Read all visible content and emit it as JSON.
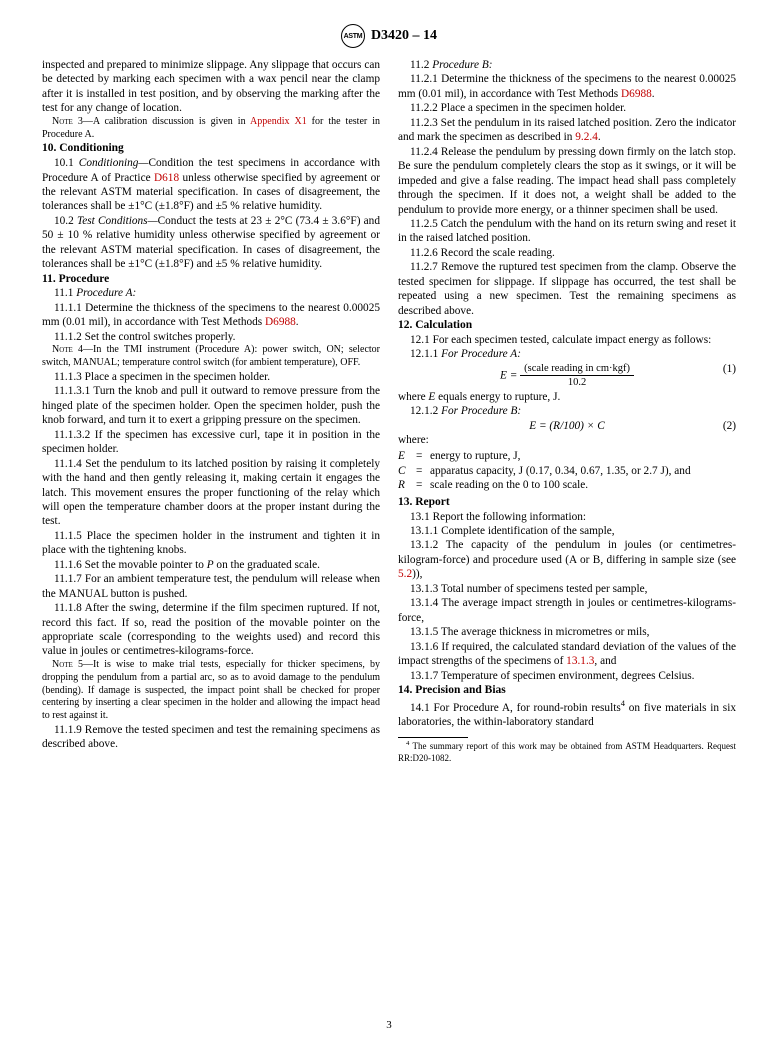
{
  "header": {
    "logo_text": "ASTM",
    "designation": "D3420 – 14"
  },
  "page_number": "3",
  "colors": {
    "ref_link": "#c00000",
    "text": "#000000",
    "background": "#ffffff"
  },
  "typography": {
    "body_font": "Times New Roman",
    "body_size_pt": 9,
    "note_size_pt": 8,
    "heading_weight": "bold"
  },
  "left_col": {
    "intro": "inspected and prepared to minimize slippage. Any slippage that occurs can be detected by marking each specimen with a wax pencil near the clamp after it is installed in test position, and by observing the marking after the test for any change of location.",
    "note3_label": "Note 3—",
    "note3": "A calibration discussion is given in ",
    "note3_ref": "Appendix X1",
    "note3_tail": " for the tester in Procedure A.",
    "s10_head": "10.  Conditioning",
    "s10_1_a": "10.1 ",
    "s10_1_it": "Conditioning—",
    "s10_1_b": "Condition the test specimens in accordance with Procedure A of Practice ",
    "s10_1_ref": "D618",
    "s10_1_c": " unless otherwise specified by agreement or the relevant ASTM material specification. In cases of disagreement, the tolerances shall be ±1°C (±1.8°F) and ±5 % relative humidity.",
    "s10_2_a": "10.2 ",
    "s10_2_it": "Test Conditions—",
    "s10_2_b": "Conduct the tests at 23 ± 2°C (73.4 ± 3.6°F) and 50 ± 10 % relative humidity unless otherwise specified by agreement or the relevant ASTM material specification. In cases of disagreement, the tolerances shall be ±1°C (±1.8°F) and ±5 % relative humidity.",
    "s11_head": "11.  Procedure",
    "s11_1": "11.1 ",
    "s11_1_it": "Procedure A:",
    "s11_1_1": "11.1.1 Determine the thickness of the specimens to the nearest 0.00025 mm (0.01 mil), in accordance with Test Methods ",
    "s11_1_1_ref": "D6988",
    "s11_1_1_tail": ".",
    "s11_1_2": "11.1.2 Set the control switches properly.",
    "note4_label": "Note 4—",
    "note4": "In the TMI instrument (Procedure A): power switch, ON; selector switch, MANUAL; temperature control switch (for ambient temperature), OFF.",
    "s11_1_3": "11.1.3 Place a specimen in the specimen holder.",
    "s11_1_3_1": "11.1.3.1 Turn the knob and pull it outward to remove pressure from the hinged plate of the specimen holder. Open the specimen holder, push the knob forward, and turn it to exert a gripping pressure on the specimen.",
    "s11_1_3_2": "11.1.3.2 If the specimen has excessive curl, tape it in position in the specimen holder.",
    "s11_1_4": "11.1.4 Set the pendulum to its latched position by raising it completely with the hand and then gently releasing it, making certain it engages the latch. This movement ensures the proper functioning of the relay which will open the temperature chamber doors at the proper instant during the test.",
    "s11_1_5": "11.1.5 Place the specimen holder in the instrument and tighten it in place with the tightening knobs.",
    "s11_1_6_a": "11.1.6 Set the movable pointer to ",
    "s11_1_6_P": "P",
    "s11_1_6_b": " on the graduated scale.",
    "s11_1_7": "11.1.7 For an ambient temperature test, the pendulum will release when the MANUAL button is pushed.",
    "s11_1_8": "11.1.8 After the swing, determine if the film specimen ruptured. If not, record this fact. If so, read the position of the movable pointer on the appropriate scale (corresponding to the weights used) and record this value in joules or centimetres-kilograms-force.",
    "note5_label": "Note 5—",
    "note5": "It is wise to make trial tests, especially for thicker specimens, by dropping the pendulum from a partial arc, so as to avoid damage to the pendulum (bending). If damage is suspected, the impact point shall be checked for proper centering by inserting a clear specimen in the holder and allowing the impact head to rest against it.",
    "s11_1_9": "11.1.9 Remove the tested specimen and test the remaining specimens as described above."
  },
  "right_col": {
    "s11_2": "11.2 ",
    "s11_2_it": "Procedure B:",
    "s11_2_1": "11.2.1 Determine the thickness of the specimens to the nearest 0.00025 mm (0.01 mil), in accordance with Test Methods ",
    "s11_2_1_ref": "D6988",
    "s11_2_1_tail": ".",
    "s11_2_2": "11.2.2 Place a specimen in the specimen holder.",
    "s11_2_3": "11.2.3 Set the pendulum in its raised latched position. Zero the indicator and mark the specimen as described in ",
    "s11_2_3_ref": "9.2.4",
    "s11_2_3_tail": ".",
    "s11_2_4": "11.2.4 Release the pendulum by pressing down firmly on the latch stop. Be sure the pendulum completely clears the stop as it swings, or it will be impeded and give a false reading. The impact head shall pass completely through the specimen. If it does not, a weight shall be added to the pendulum to provide more energy, or a thinner specimen shall be used.",
    "s11_2_5": "11.2.5 Catch the pendulum with the hand on its return swing and reset it in the raised latched position.",
    "s11_2_6": "11.2.6 Record the scale reading.",
    "s11_2_7": "11.2.7 Remove the ruptured test specimen from the clamp. Observe the tested specimen for slippage. If slippage has occurred, the test shall be repeated using a new specimen. Test the remaining specimens as described above.",
    "s12_head": "12.  Calculation",
    "s12_1": "12.1 For each specimen tested, calculate impact energy as follows:",
    "s12_1_1": "12.1.1 ",
    "s12_1_1_it": "For Procedure A:",
    "eq1_lhs": "E = ",
    "eq1_top": "(scale reading in cm·kgf)",
    "eq1_bot": "10.2",
    "eq1_num": "(1)",
    "eq1_where": "where ",
    "eq1_where_E": "E",
    "eq1_where_tail": " equals energy to rupture, J.",
    "s12_1_2": "12.1.2 ",
    "s12_1_2_it": "For Procedure B:",
    "eq2": "E = (R/100) × C",
    "eq2_num": "(2)",
    "where_label": "where:",
    "where_E_sym": "E",
    "where_E_def": "energy to rupture, J,",
    "where_C_sym": "C",
    "where_C_def": "apparatus capacity, J (0.17, 0.34, 0.67, 1.35, or 2.7 J), and",
    "where_R_sym": "R",
    "where_R_def": "scale reading on the 0 to 100 scale.",
    "s13_head": "13.  Report",
    "s13_1": "13.1 Report the following information:",
    "s13_1_1": "13.1.1 Complete identification of the sample,",
    "s13_1_2_a": "13.1.2 The capacity of the pendulum in joules (or centimetres-kilogram-force) and procedure used (A or B, differing in sample size (see ",
    "s13_1_2_ref": "5.2",
    "s13_1_2_b": ")),",
    "s13_1_3": "13.1.3 Total number of specimens tested per sample,",
    "s13_1_4": "13.1.4 The average impact strength in joules or centimetres-kilograms-force,",
    "s13_1_5": "13.1.5 The average thickness in micrometres or mils,",
    "s13_1_6_a": "13.1.6 If required, the calculated standard deviation of the values of the impact strengths of the specimens of ",
    "s13_1_6_ref": "13.1.3",
    "s13_1_6_b": ", and",
    "s13_1_7": "13.1.7 Temperature of specimen environment, degrees Celsius.",
    "s14_head": "14.  Precision and Bias",
    "s14_1_a": "14.1 For Procedure A, for round-robin results",
    "s14_1_sup": "4",
    "s14_1_b": " on five materials in six laboratories, the within-laboratory standard",
    "fn4_sup": "4",
    "fn4": " The summary report of this work may be obtained from ASTM Headquarters. Request RR:D20-1082."
  }
}
